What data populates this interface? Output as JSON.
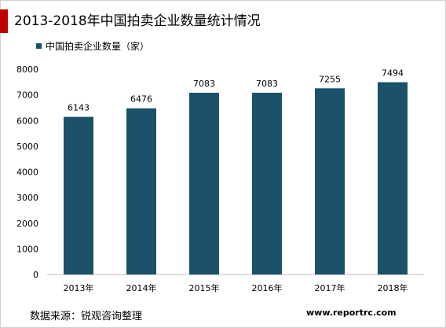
{
  "title": "2013-2018年中国拍卖企业数量统计情况",
  "source": "数据来源：锐观咨询整理",
  "watermark": "www.reportrc.com",
  "chart_data": {
    "type": "bar",
    "title": "",
    "xlabel": "",
    "ylabel": "",
    "categories": [
      "2013年",
      "2014年",
      "2015年",
      "2016年",
      "2017年",
      "2018年"
    ],
    "series": [
      {
        "name": "中国拍卖企业数量（家）",
        "values": [
          6143,
          6476,
          7083,
          7083,
          7255,
          7494
        ],
        "color": "#1b5169"
      }
    ],
    "ylim": [
      0,
      8000
    ],
    "yticks": [
      0,
      1000,
      2000,
      3000,
      4000,
      5000,
      6000,
      7000,
      8000
    ],
    "grid": false,
    "legend": "top-left",
    "data_labels": true
  }
}
